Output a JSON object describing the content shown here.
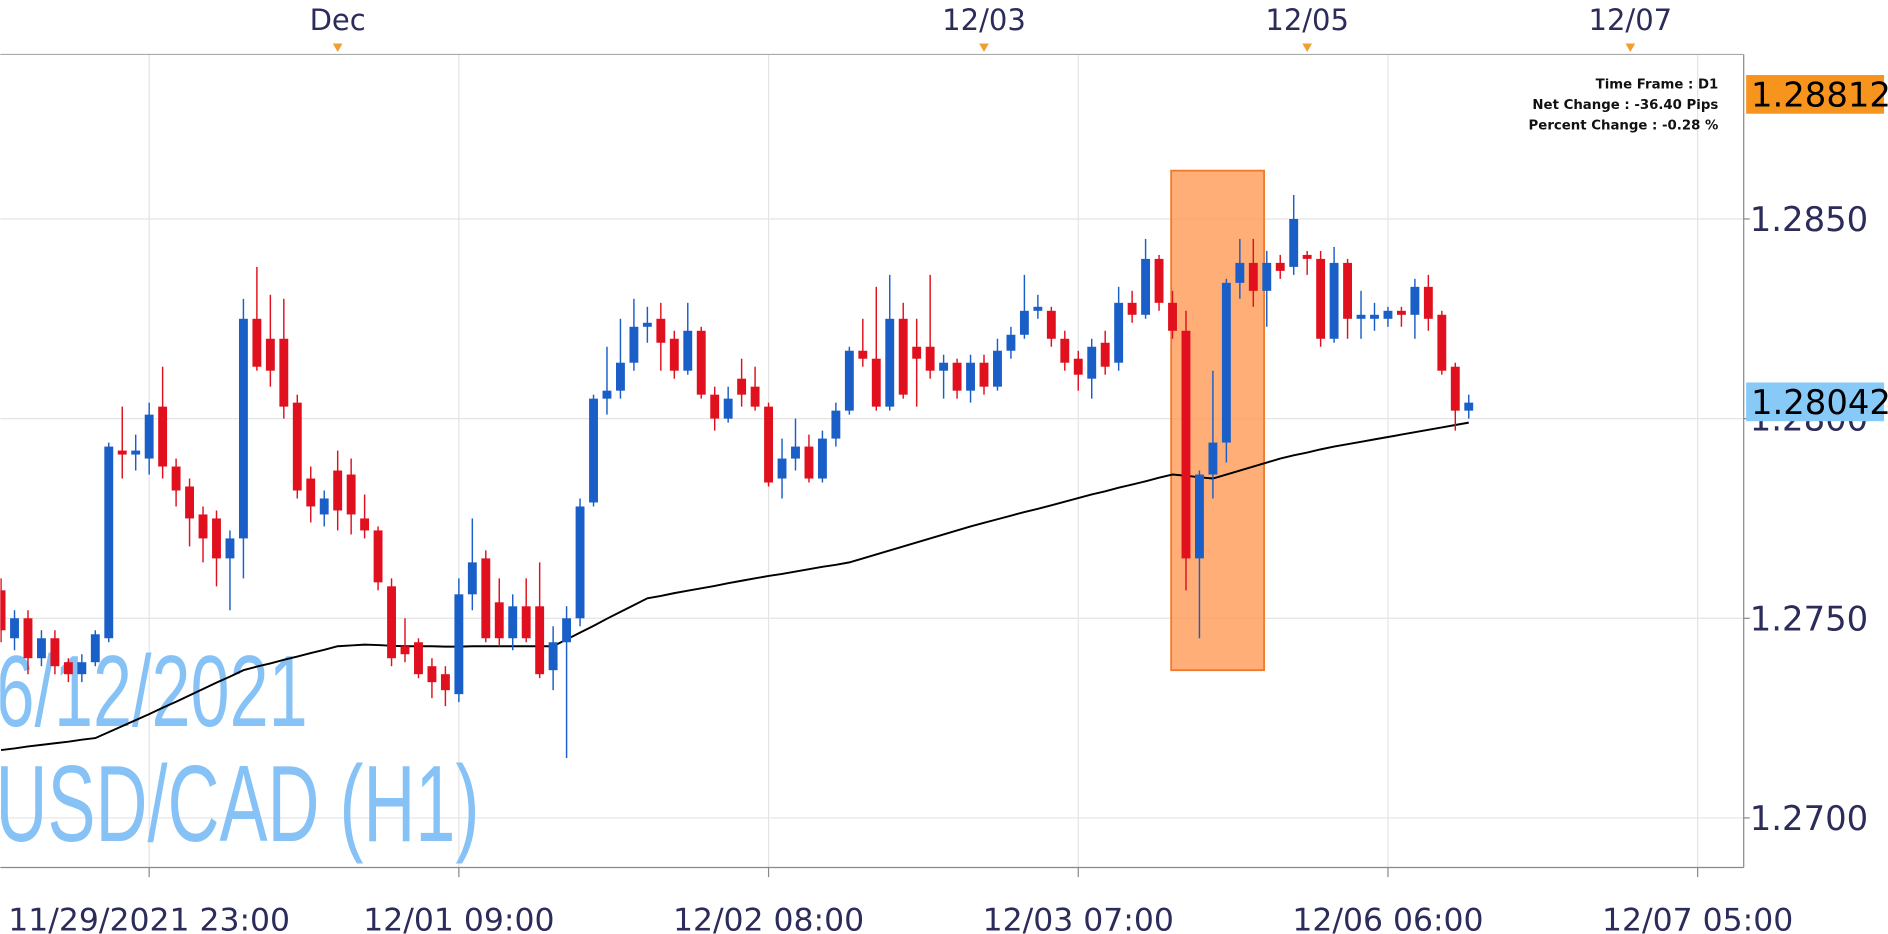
{
  "chart_data": {
    "type": "candlestick",
    "up_color": "#1a5fc8",
    "down_color": "#e0101e",
    "xlim": [
      -0.054,
      129.42
    ],
    "ylim": [
      1.26876,
      1.28912
    ],
    "yticks": [
      {
        "value": 1.27,
        "label": "1.2700"
      },
      {
        "value": 1.275,
        "label": "1.2750"
      },
      {
        "value": 1.28,
        "label": "1.2800"
      },
      {
        "value": 1.285,
        "label": "1.2850"
      }
    ],
    "xticks": [
      {
        "value": 11,
        "label": "11/29/2021 23:00"
      },
      {
        "value": 34,
        "label": "12/01 09:00"
      },
      {
        "value": 57,
        "label": "12/02 08:00"
      },
      {
        "value": 80,
        "label": "12/03 07:00"
      },
      {
        "value": 103,
        "label": "12/06 06:00"
      },
      {
        "value": 126,
        "label": "12/07 05:00"
      }
    ],
    "x2ticks": [
      {
        "value": 25,
        "label": "Dec"
      },
      {
        "value": 73,
        "label": "12/03"
      },
      {
        "value": 97,
        "label": "12/05"
      },
      {
        "value": 121,
        "label": "12/07"
      }
    ],
    "grid": true,
    "open": [
      1.2757,
      1.2745,
      1.275,
      1.274,
      1.2745,
      1.2739,
      1.2736,
      1.2739,
      1.2745,
      1.2792,
      1.2791,
      1.279,
      1.2803,
      1.2788,
      1.2783,
      1.2776,
      1.2775,
      1.2765,
      1.277,
      1.2825,
      1.282,
      1.282,
      1.2804,
      1.2785,
      1.2776,
      1.2787,
      1.2786,
      1.2775,
      1.2772,
      1.2758,
      1.2743,
      1.2744,
      1.2738,
      1.2736,
      1.2731,
      1.2756,
      1.2765,
      1.2754,
      1.2745,
      1.2753,
      1.2753,
      1.2737,
      1.2744,
      1.275,
      1.2779,
      1.2805,
      1.2807,
      1.2814,
      1.2823,
      1.2825,
      1.282,
      1.2812,
      1.2822,
      1.2806,
      1.28,
      1.281,
      1.2808,
      1.2803,
      1.2785,
      1.279,
      1.2793,
      1.2785,
      1.2795,
      1.2802,
      1.2817,
      1.2815,
      1.2803,
      1.2825,
      1.2818,
      1.2818,
      1.2812,
      1.2814,
      1.2807,
      1.2814,
      1.2808,
      1.2817,
      1.2821,
      1.2827,
      1.2827,
      1.282,
      1.2815,
      1.281,
      1.2819,
      1.2814,
      1.2829,
      1.2826,
      1.284,
      1.2829,
      1.2822,
      1.2765,
      1.2786,
      1.2794,
      1.2834,
      1.2839,
      1.2832,
      1.2839,
      1.2838,
      1.2841,
      1.284,
      1.282,
      1.2839,
      1.2825,
      1.2825,
      1.2825,
      1.2827,
      1.2826,
      1.2833,
      1.2826,
      1.2813,
      1.2802
    ],
    "high": [
      1.276,
      1.2752,
      1.2752,
      1.2747,
      1.2747,
      1.274,
      1.2741,
      1.2747,
      1.2794,
      1.2803,
      1.2796,
      1.2804,
      1.2813,
      1.279,
      1.2785,
      1.2778,
      1.2777,
      1.2772,
      1.283,
      1.2838,
      1.2831,
      1.283,
      1.2806,
      1.2788,
      1.2782,
      1.2792,
      1.279,
      1.2781,
      1.2773,
      1.276,
      1.275,
      1.2745,
      1.274,
      1.2738,
      1.276,
      1.2775,
      1.2767,
      1.276,
      1.2756,
      1.276,
      1.2764,
      1.2748,
      1.2753,
      1.278,
      1.2806,
      1.2818,
      1.2825,
      1.283,
      1.2828,
      1.2829,
      1.2822,
      1.2829,
      1.2823,
      1.2808,
      1.2808,
      1.2815,
      1.2813,
      1.2804,
      1.2795,
      1.28,
      1.2796,
      1.2797,
      1.2804,
      1.2818,
      1.2825,
      1.2833,
      1.2836,
      1.2829,
      1.2825,
      1.2836,
      1.2816,
      1.2815,
      1.2816,
      1.2816,
      1.282,
      1.2823,
      1.2836,
      1.2831,
      1.2828,
      1.2822,
      1.2817,
      1.282,
      1.2822,
      1.2833,
      1.2832,
      1.2845,
      1.2841,
      1.2832,
      1.2827,
      1.2787,
      1.2812,
      1.2835,
      1.2845,
      1.2845,
      1.2842,
      1.2841,
      1.2856,
      1.2842,
      1.2842,
      1.2843,
      1.284,
      1.2832,
      1.2829,
      1.2828,
      1.2828,
      1.2835,
      1.2836,
      1.2827,
      1.2814,
      1.2806
    ],
    "low": [
      1.2744,
      1.2742,
      1.2736,
      1.2738,
      1.2736,
      1.2734,
      1.2734,
      1.2738,
      1.2744,
      1.2785,
      1.2787,
      1.2786,
      1.2785,
      1.2778,
      1.2768,
      1.2764,
      1.2758,
      1.2752,
      1.276,
      1.2812,
      1.2808,
      1.28,
      1.278,
      1.2774,
      1.2773,
      1.2772,
      1.2771,
      1.277,
      1.2757,
      1.2738,
      1.2739,
      1.2735,
      1.273,
      1.2728,
      1.2729,
      1.2752,
      1.2744,
      1.2743,
      1.2742,
      1.2744,
      1.2735,
      1.2732,
      1.2715,
      1.2748,
      1.2778,
      1.2801,
      1.2805,
      1.2812,
      1.2819,
      1.2812,
      1.281,
      1.2811,
      1.2805,
      1.2797,
      1.2799,
      1.2803,
      1.2802,
      1.2783,
      1.278,
      1.2787,
      1.2784,
      1.2784,
      1.2793,
      1.2801,
      1.2813,
      1.2802,
      1.2802,
      1.2805,
      1.2803,
      1.281,
      1.2805,
      1.2805,
      1.2804,
      1.2806,
      1.2807,
      1.2815,
      1.282,
      1.2825,
      1.2818,
      1.2812,
      1.2807,
      1.2805,
      1.2811,
      1.2812,
      1.2824,
      1.2825,
      1.2827,
      1.282,
      1.2757,
      1.2745,
      1.278,
      1.2789,
      1.283,
      1.2828,
      1.2823,
      1.2835,
      1.2836,
      1.2836,
      1.2818,
      1.2819,
      1.282,
      1.282,
      1.2822,
      1.2823,
      1.2823,
      1.282,
      1.2822,
      1.2811,
      1.2797,
      1.28
    ],
    "close": [
      1.2747,
      1.275,
      1.274,
      1.2745,
      1.2738,
      1.2736,
      1.2739,
      1.2746,
      1.2793,
      1.2791,
      1.2792,
      1.2801,
      1.2788,
      1.2782,
      1.2775,
      1.277,
      1.2765,
      1.277,
      1.2825,
      1.2813,
      1.2812,
      1.2803,
      1.2782,
      1.2778,
      1.278,
      1.2777,
      1.2776,
      1.2772,
      1.2759,
      1.274,
      1.2741,
      1.2736,
      1.2734,
      1.2732,
      1.2756,
      1.2764,
      1.2745,
      1.2745,
      1.2753,
      1.2745,
      1.2736,
      1.2744,
      1.275,
      1.2778,
      1.2805,
      1.2807,
      1.2814,
      1.2823,
      1.2824,
      1.2819,
      1.2812,
      1.2822,
      1.2806,
      1.28,
      1.2805,
      1.2806,
      1.2803,
      1.2784,
      1.279,
      1.2793,
      1.2785,
      1.2795,
      1.2802,
      1.2817,
      1.2815,
      1.2803,
      1.2825,
      1.2806,
      1.2815,
      1.2812,
      1.2814,
      1.2807,
      1.2814,
      1.2808,
      1.2817,
      1.2821,
      1.2827,
      1.2828,
      1.282,
      1.2814,
      1.2811,
      1.2818,
      1.2813,
      1.2829,
      1.2826,
      1.284,
      1.2829,
      1.2822,
      1.2765,
      1.2786,
      1.2794,
      1.2834,
      1.2839,
      1.2832,
      1.2839,
      1.2837,
      1.285,
      1.284,
      1.282,
      1.2839,
      1.2825,
      1.2826,
      1.2826,
      1.2827,
      1.2826,
      1.2833,
      1.2825,
      1.2812,
      1.2802,
      1.2804
    ],
    "ma": {
      "color": "#000000",
      "values": [
        1.2717,
        1.27174,
        1.27179,
        1.27183,
        1.27187,
        1.27191,
        1.27196,
        1.272,
        1.27215,
        1.2723,
        1.27245,
        1.2726,
        1.27276,
        1.27291,
        1.27307,
        1.27323,
        1.27339,
        1.27354,
        1.2737,
        1.27379,
        1.27387,
        1.27396,
        1.27404,
        1.27413,
        1.27421,
        1.2743,
        1.27432,
        1.27434,
        1.27433,
        1.27431,
        1.2743,
        1.2743,
        1.2743,
        1.27429,
        1.27429,
        1.2743,
        1.2743,
        1.2743,
        1.2743,
        1.2743,
        1.2743,
        1.2743,
        1.27447,
        1.27464,
        1.27481,
        1.27499,
        1.27516,
        1.27533,
        1.2755,
        1.27556,
        1.27563,
        1.27569,
        1.27575,
        1.27581,
        1.27588,
        1.27594,
        1.276,
        1.27606,
        1.27611,
        1.27617,
        1.27623,
        1.27629,
        1.27634,
        1.2764,
        1.2765,
        1.2766,
        1.2767,
        1.2768,
        1.2769,
        1.277,
        1.2771,
        1.2772,
        1.2773,
        1.27739,
        1.27748,
        1.27757,
        1.27766,
        1.27774,
        1.27783,
        1.27792,
        1.27801,
        1.2781,
        1.27818,
        1.27827,
        1.27835,
        1.27843,
        1.27852,
        1.2786,
        1.27857,
        1.27853,
        1.2785,
        1.2786,
        1.2787,
        1.2788,
        1.2789,
        1.279,
        1.27908,
        1.27915,
        1.27923,
        1.2793,
        1.27936,
        1.27942,
        1.27948,
        1.27954,
        1.2796,
        1.27966,
        1.27972,
        1.27978,
        1.27984,
        1.2799
      ]
    },
    "highlight": {
      "xlim": [
        86.9,
        93.8
      ],
      "ylim": [
        1.2737,
        1.28621
      ],
      "color": "#ff9a55"
    },
    "price_labels": [
      {
        "value": 1.28812,
        "color": "#f7941d"
      },
      {
        "value": 1.28042,
        "color": "#87c9f7"
      }
    ],
    "info": [
      "Time Frame : D1",
      "Net Change : -36.40 Pips",
      "Percent Change : -0.28 %"
    ],
    "watermark": [
      "6/12/2021",
      "USD/CAD (H1)"
    ],
    "watermark_color": "#86c2f6"
  }
}
